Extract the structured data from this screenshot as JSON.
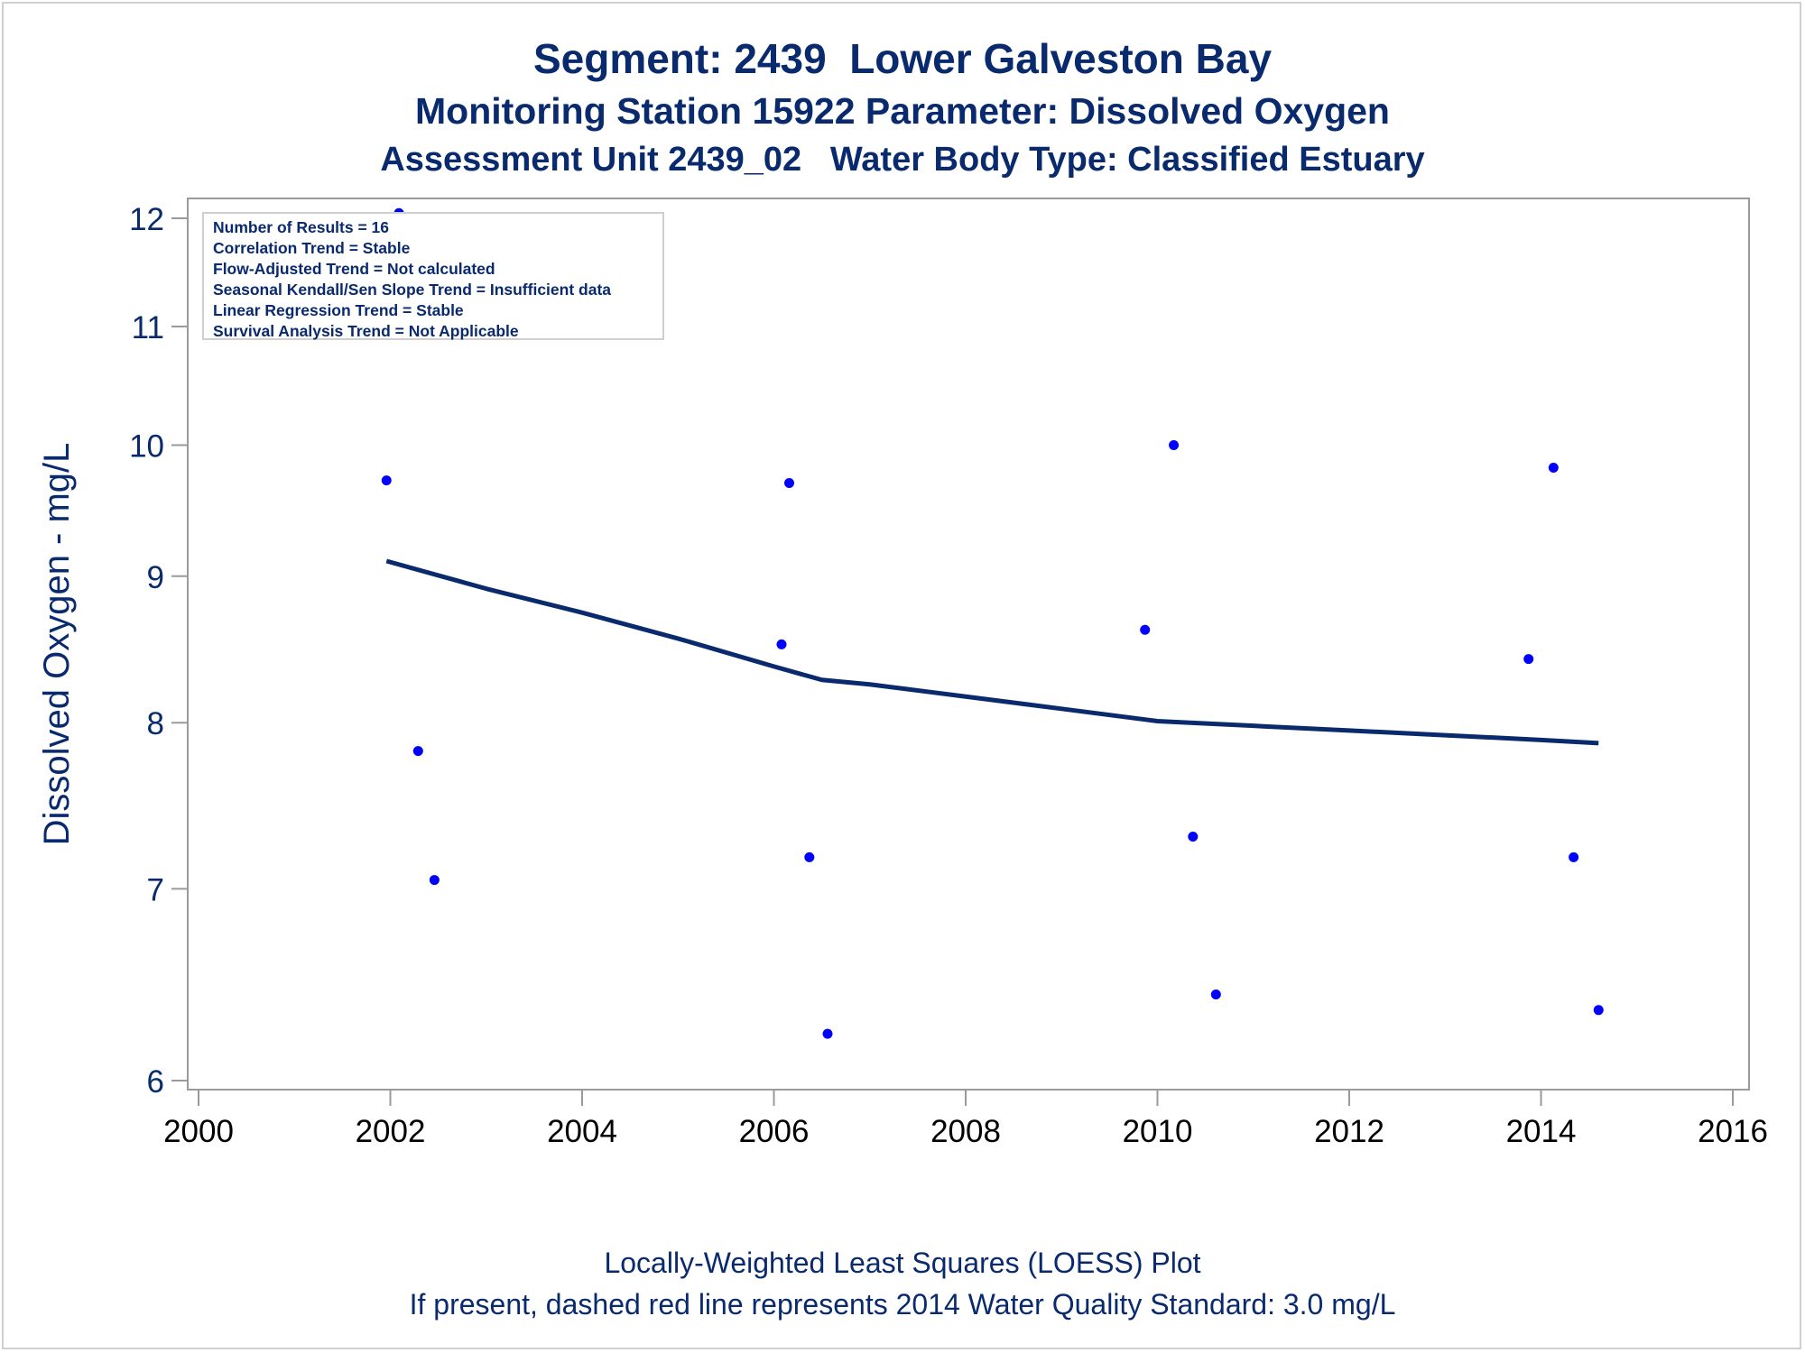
{
  "titles": {
    "line1": "Segment: 2439  Lower Galveston Bay",
    "line2": "Monitoring Station 15922 Parameter: Dissolved Oxygen",
    "line3": "Assessment Unit 2439_02   Water Body Type: Classified Estuary"
  },
  "footnotes": {
    "line1": "Locally-Weighted Least Squares (LOESS) Plot",
    "line2": "If present, dashed red line represents 2014 Water Quality Standard: 3.0 mg/L"
  },
  "info_box": {
    "lines": [
      "Number of Results = 16",
      "Correlation Trend = Stable",
      "Flow-Adjusted Trend = Not calculated",
      "Seasonal Kendall/Sen Slope Trend = Insufficient data",
      "Linear Regression Trend = Stable",
      "Survival Analysis Trend = Not Applicable"
    ]
  },
  "colors": {
    "text": "#0a2a6e",
    "points": "#0000ff",
    "loess_line": "#0a2a6e",
    "axis": "#9a9a9a"
  },
  "chart_data": {
    "type": "scatter",
    "xlabel": "",
    "ylabel": "Dissolved Oxygen - mg/L",
    "xlim": [
      2000,
      2016
    ],
    "ylim": [
      6,
      12
    ],
    "yscale": "log",
    "x_ticks": [
      2000,
      2002,
      2004,
      2006,
      2008,
      2010,
      2012,
      2014,
      2016
    ],
    "y_ticks": [
      6,
      7,
      8,
      9,
      10,
      11,
      12
    ],
    "grid": false,
    "series": [
      {
        "kind": "points",
        "x": [
          2001.96,
          2002.09,
          2002.29,
          2002.46,
          2006.08,
          2006.16,
          2006.37,
          2006.56,
          2009.87,
          2010.17,
          2010.37,
          2010.61,
          2013.87,
          2014.13,
          2014.34,
          2014.6
        ],
        "y": [
          9.72,
          12.05,
          7.82,
          7.05,
          8.52,
          9.7,
          7.18,
          6.23,
          8.62,
          10.0,
          7.3,
          6.43,
          8.42,
          9.82,
          7.18,
          6.35
        ]
      },
      {
        "kind": "loess",
        "x": [
          2001.96,
          2003,
          2004,
          2005,
          2006,
          2006.5,
          2007,
          2008,
          2009,
          2010,
          2011,
          2012,
          2013,
          2014,
          2014.6
        ],
        "y": [
          9.11,
          8.91,
          8.74,
          8.56,
          8.37,
          8.28,
          8.25,
          8.17,
          8.09,
          8.01,
          7.98,
          7.95,
          7.92,
          7.89,
          7.87
        ]
      }
    ]
  }
}
